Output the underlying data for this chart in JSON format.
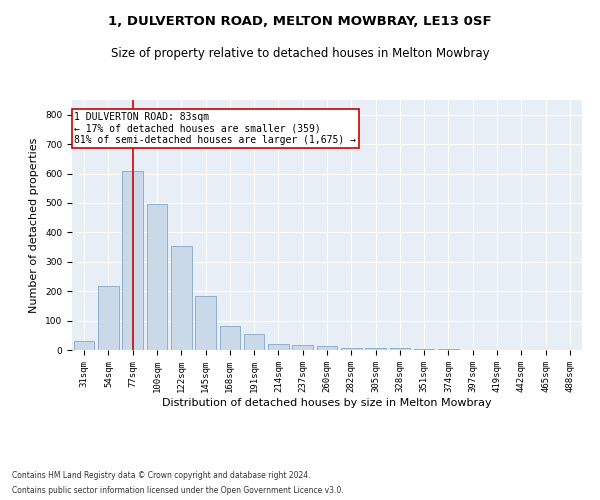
{
  "title1": "1, DULVERTON ROAD, MELTON MOWBRAY, LE13 0SF",
  "title2": "Size of property relative to detached houses in Melton Mowbray",
  "xlabel": "Distribution of detached houses by size in Melton Mowbray",
  "ylabel": "Number of detached properties",
  "footnote1": "Contains HM Land Registry data © Crown copyright and database right 2024.",
  "footnote2": "Contains public sector information licensed under the Open Government Licence v3.0.",
  "bar_labels": [
    "31sqm",
    "54sqm",
    "77sqm",
    "100sqm",
    "122sqm",
    "145sqm",
    "168sqm",
    "191sqm",
    "214sqm",
    "237sqm",
    "260sqm",
    "282sqm",
    "305sqm",
    "328sqm",
    "351sqm",
    "374sqm",
    "397sqm",
    "419sqm",
    "442sqm",
    "465sqm",
    "488sqm"
  ],
  "bar_values": [
    30,
    218,
    610,
    495,
    352,
    185,
    82,
    55,
    22,
    17,
    13,
    7,
    6,
    6,
    5,
    4,
    0,
    0,
    0,
    0,
    0
  ],
  "bar_color": "#c9d9e8",
  "bar_edge_color": "#7fa8c9",
  "background_color": "#e8eef5",
  "grid_color": "#ffffff",
  "ylim": [
    0,
    850
  ],
  "yticks": [
    0,
    100,
    200,
    300,
    400,
    500,
    600,
    700,
    800
  ],
  "property_bar_index": 2,
  "vline_color": "#cc0000",
  "annotation_line1": "1 DULVERTON ROAD: 83sqm",
  "annotation_line2": "← 17% of detached houses are smaller (359)",
  "annotation_line3": "81% of semi-detached houses are larger (1,675) →",
  "annotation_box_color": "#cc0000",
  "title1_fontsize": 9.5,
  "title2_fontsize": 8.5,
  "tick_fontsize": 6.5,
  "label_fontsize": 8,
  "footnote_fontsize": 5.5,
  "annotation_fontsize": 7
}
